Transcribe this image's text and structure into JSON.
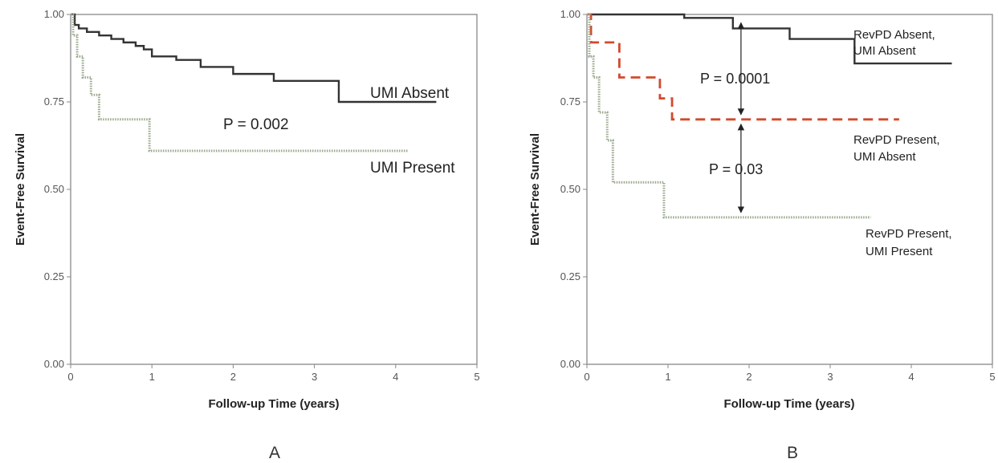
{
  "chart_data": [
    {
      "type": "line",
      "panel_label": "A",
      "xlabel": "Follow-up Time (years)",
      "ylabel": "Event-Free Survival",
      "xlim": [
        0,
        5
      ],
      "ylim": [
        0,
        1
      ],
      "xticks": [
        "0",
        "1",
        "2",
        "3",
        "4",
        "5"
      ],
      "yticks": [
        "0.00",
        "0.25",
        "0.50",
        "0.75",
        "1.00"
      ],
      "grid": false,
      "series": [
        {
          "name": "UMI Absent",
          "color": "#333333",
          "style": "solid",
          "x": [
            0,
            0.05,
            0.1,
            0.2,
            0.35,
            0.5,
            0.65,
            0.8,
            0.9,
            1.0,
            1.3,
            1.6,
            2.0,
            2.5,
            3.3,
            4.5
          ],
          "y": [
            1.0,
            0.97,
            0.96,
            0.95,
            0.94,
            0.93,
            0.92,
            0.91,
            0.9,
            0.88,
            0.87,
            0.85,
            0.83,
            0.81,
            0.75,
            0.75
          ]
        },
        {
          "name": "UMI Present",
          "color": "#9aa98f",
          "style": "dotted",
          "x": [
            0,
            0.03,
            0.08,
            0.15,
            0.25,
            0.35,
            0.97,
            4.15
          ],
          "y": [
            1.0,
            0.94,
            0.88,
            0.82,
            0.77,
            0.7,
            0.61,
            0.61
          ]
        }
      ],
      "annotations": [
        "P = 0.002"
      ]
    },
    {
      "type": "line",
      "panel_label": "B",
      "xlabel": "Follow-up Time (years)",
      "ylabel": "Event-Free Survival",
      "xlim": [
        0,
        5
      ],
      "ylim": [
        0,
        1
      ],
      "xticks": [
        "0",
        "1",
        "2",
        "3",
        "4",
        "5"
      ],
      "yticks": [
        "0.00",
        "0.25",
        "0.50",
        "0.75",
        "1.00"
      ],
      "grid": false,
      "series": [
        {
          "name": "RevPD Absent, UMI Absent",
          "color": "#333333",
          "style": "solid",
          "x": [
            0,
            1.2,
            1.8,
            2.5,
            3.3,
            4.5
          ],
          "y": [
            1.0,
            0.99,
            0.96,
            0.93,
            0.86,
            0.86
          ],
          "label_lines": [
            "RevPD Absent,",
            "UMI Absent"
          ]
        },
        {
          "name": "RevPD Present, UMI Absent",
          "color": "#d24a2c",
          "style": "dashed",
          "x": [
            0,
            0.05,
            0.4,
            0.9,
            1.05,
            3.85
          ],
          "y": [
            1.0,
            0.92,
            0.82,
            0.76,
            0.7,
            0.7
          ],
          "label_lines": [
            "RevPD Present,",
            "UMI Absent"
          ]
        },
        {
          "name": "RevPD Present, UMI Present",
          "color": "#9aa98f",
          "style": "dotted",
          "x": [
            0,
            0.03,
            0.08,
            0.15,
            0.25,
            0.32,
            0.95,
            3.5
          ],
          "y": [
            1.0,
            0.88,
            0.82,
            0.72,
            0.64,
            0.52,
            0.42,
            0.42
          ],
          "label_lines": [
            "RevPD Present,",
            "UMI Present"
          ]
        }
      ],
      "annotations": [
        "P = 0.0001",
        "P = 0.03"
      ],
      "arrow_x": 1.9,
      "arrows": [
        [
          0.99,
          0.7
        ],
        [
          0.7,
          0.42
        ]
      ]
    }
  ]
}
